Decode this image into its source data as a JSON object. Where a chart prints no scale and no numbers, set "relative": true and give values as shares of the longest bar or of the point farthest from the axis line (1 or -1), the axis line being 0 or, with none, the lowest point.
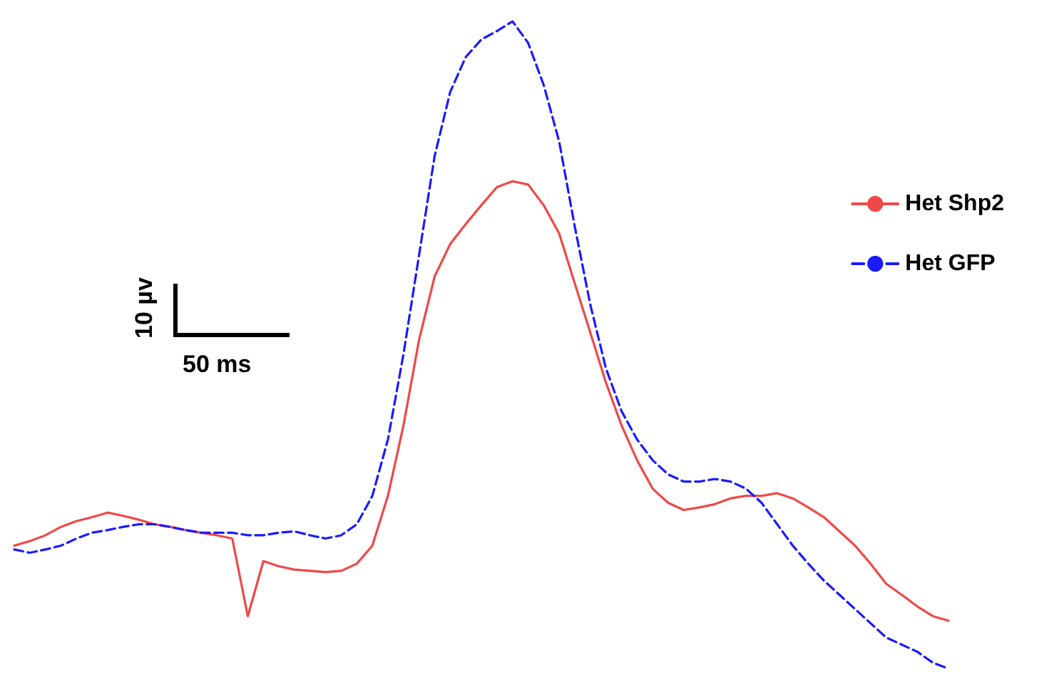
{
  "chart_data": {
    "type": "line",
    "relative": true,
    "legend": "top right",
    "marker": "none",
    "annotations": [
      "10 µv",
      "50 ms"
    ],
    "categories": [
      null,
      null,
      null,
      null,
      null,
      null,
      null,
      null,
      null,
      null,
      null,
      null,
      null,
      null,
      null,
      null,
      null,
      null,
      null,
      null,
      null,
      null,
      null,
      null,
      null,
      null,
      null,
      null,
      null,
      null,
      null,
      null,
      null,
      null,
      null,
      null,
      null,
      null,
      null,
      null,
      null,
      null,
      null,
      null,
      null,
      null,
      null,
      null,
      null,
      null,
      null,
      null,
      null,
      null,
      null,
      null,
      null,
      null,
      null,
      null,
      null
    ],
    "series": [
      {
        "name": "Het Shp2",
        "color": "#f04848",
        "line_style": "solid",
        "values": [
          0.19,
          0.197,
          0.206,
          0.219,
          0.228,
          0.234,
          0.241,
          0.236,
          0.23,
          0.223,
          0.219,
          0.214,
          0.21,
          0.206,
          0.201,
          0.081,
          0.166,
          0.158,
          0.153,
          0.151,
          0.149,
          0.151,
          0.162,
          0.19,
          0.267,
          0.376,
          0.508,
          0.606,
          0.656,
          0.687,
          0.716,
          0.744,
          0.753,
          0.748,
          0.716,
          0.672,
          0.595,
          0.519,
          0.442,
          0.376,
          0.322,
          0.278,
          0.256,
          0.245,
          0.249,
          0.254,
          0.263,
          0.267,
          0.267,
          0.271,
          0.263,
          0.249,
          0.234,
          0.212,
          0.19,
          0.162,
          0.131,
          0.114,
          0.096,
          0.081,
          0.074
        ]
      },
      {
        "name": "Het GFP",
        "color": "#1a1aff",
        "line_style": "dashed",
        "values": [
          0.184,
          0.179,
          0.184,
          0.19,
          0.201,
          0.21,
          0.214,
          0.219,
          0.223,
          0.223,
          0.219,
          0.214,
          0.21,
          0.21,
          0.21,
          0.206,
          0.206,
          0.21,
          0.212,
          0.206,
          0.201,
          0.206,
          0.223,
          0.267,
          0.354,
          0.486,
          0.639,
          0.792,
          0.891,
          0.945,
          0.972,
          0.985,
          1,
          0.967,
          0.902,
          0.814,
          0.683,
          0.562,
          0.464,
          0.398,
          0.354,
          0.322,
          0.3,
          0.289,
          0.289,
          0.293,
          0.289,
          0.278,
          0.256,
          0.223,
          0.19,
          0.162,
          0.136,
          0.114,
          0.092,
          0.07,
          0.048,
          0.037,
          0.026,
          0.009,
          0
        ]
      }
    ]
  }
}
